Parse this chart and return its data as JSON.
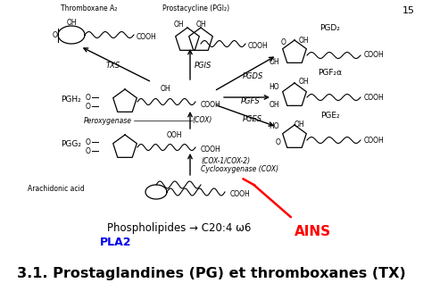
{
  "background_color": "#ffffff",
  "title": "3.1. Prostaglandines (PG) et thromboxanes (TX)",
  "title_fontsize": 11.5,
  "pla2_text": "PLA2",
  "pla2_color": "#0000ee",
  "pla2_fontsize": 9,
  "phospho_text": "Phospholipides → C20:4 ω6",
  "phospho_fontsize": 8.5,
  "ains_text": "AINS",
  "ains_color": "#ff0000",
  "ains_fontsize": 11,
  "page_number": "15"
}
